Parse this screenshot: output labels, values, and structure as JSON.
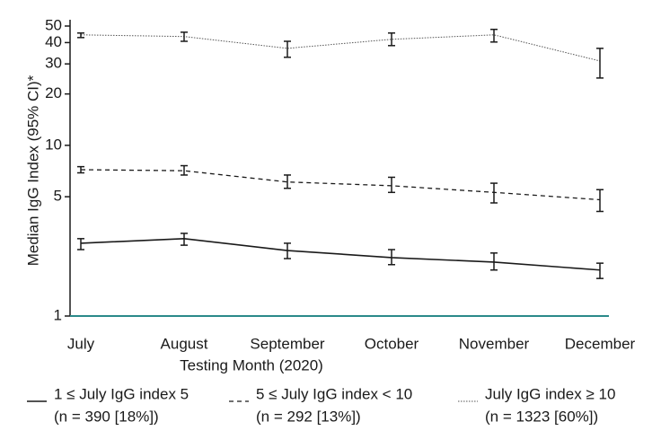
{
  "chart_data": {
    "type": "line",
    "x_label": "Testing Month (2020)",
    "y_label": "Median IgG Index (95% CI)*",
    "categories": [
      "July",
      "August",
      "September",
      "October",
      "November",
      "December"
    ],
    "y_scale": "log",
    "ylim": [
      1,
      50
    ],
    "yticks": [
      1,
      5,
      10,
      20,
      30,
      40,
      50
    ],
    "series": [
      {
        "name": "1 ≤ July IgG index 5",
        "count_label": "(n = 390 [18%])",
        "color": "#1a1a1a",
        "line_style": "solid",
        "values": [
          2.67,
          2.84,
          2.42,
          2.2,
          2.07,
          1.86
        ],
        "lower": [
          2.45,
          2.6,
          2.17,
          2.0,
          1.86,
          1.66
        ],
        "upper": [
          2.84,
          3.05,
          2.67,
          2.45,
          2.34,
          2.04
        ]
      },
      {
        "name": "5 ≤ July IgG index < 10",
        "count_label": "(n = 292 [13%])",
        "color": "#1a1a1a",
        "line_style": "dashed",
        "values": [
          7.2,
          7.1,
          6.1,
          5.8,
          5.3,
          4.8
        ],
        "lower": [
          6.9,
          6.7,
          5.6,
          5.3,
          4.6,
          4.1
        ],
        "upper": [
          7.5,
          7.6,
          6.7,
          6.5,
          6.0,
          5.5
        ]
      },
      {
        "name": "July IgG index ≥ 10",
        "count_label": "(n = 1323 [60%])",
        "color": "#555555",
        "line_style": "dotted",
        "values": [
          44.4,
          43.4,
          37,
          41.8,
          44.4,
          31.2
        ],
        "lower": [
          42.8,
          40.7,
          32.8,
          38.4,
          40.3,
          24.8
        ],
        "upper": [
          45.5,
          46,
          40.7,
          45.5,
          47.8,
          37
        ]
      }
    ],
    "x_axis_color": "#2a8a8a",
    "legend": "bottom"
  }
}
